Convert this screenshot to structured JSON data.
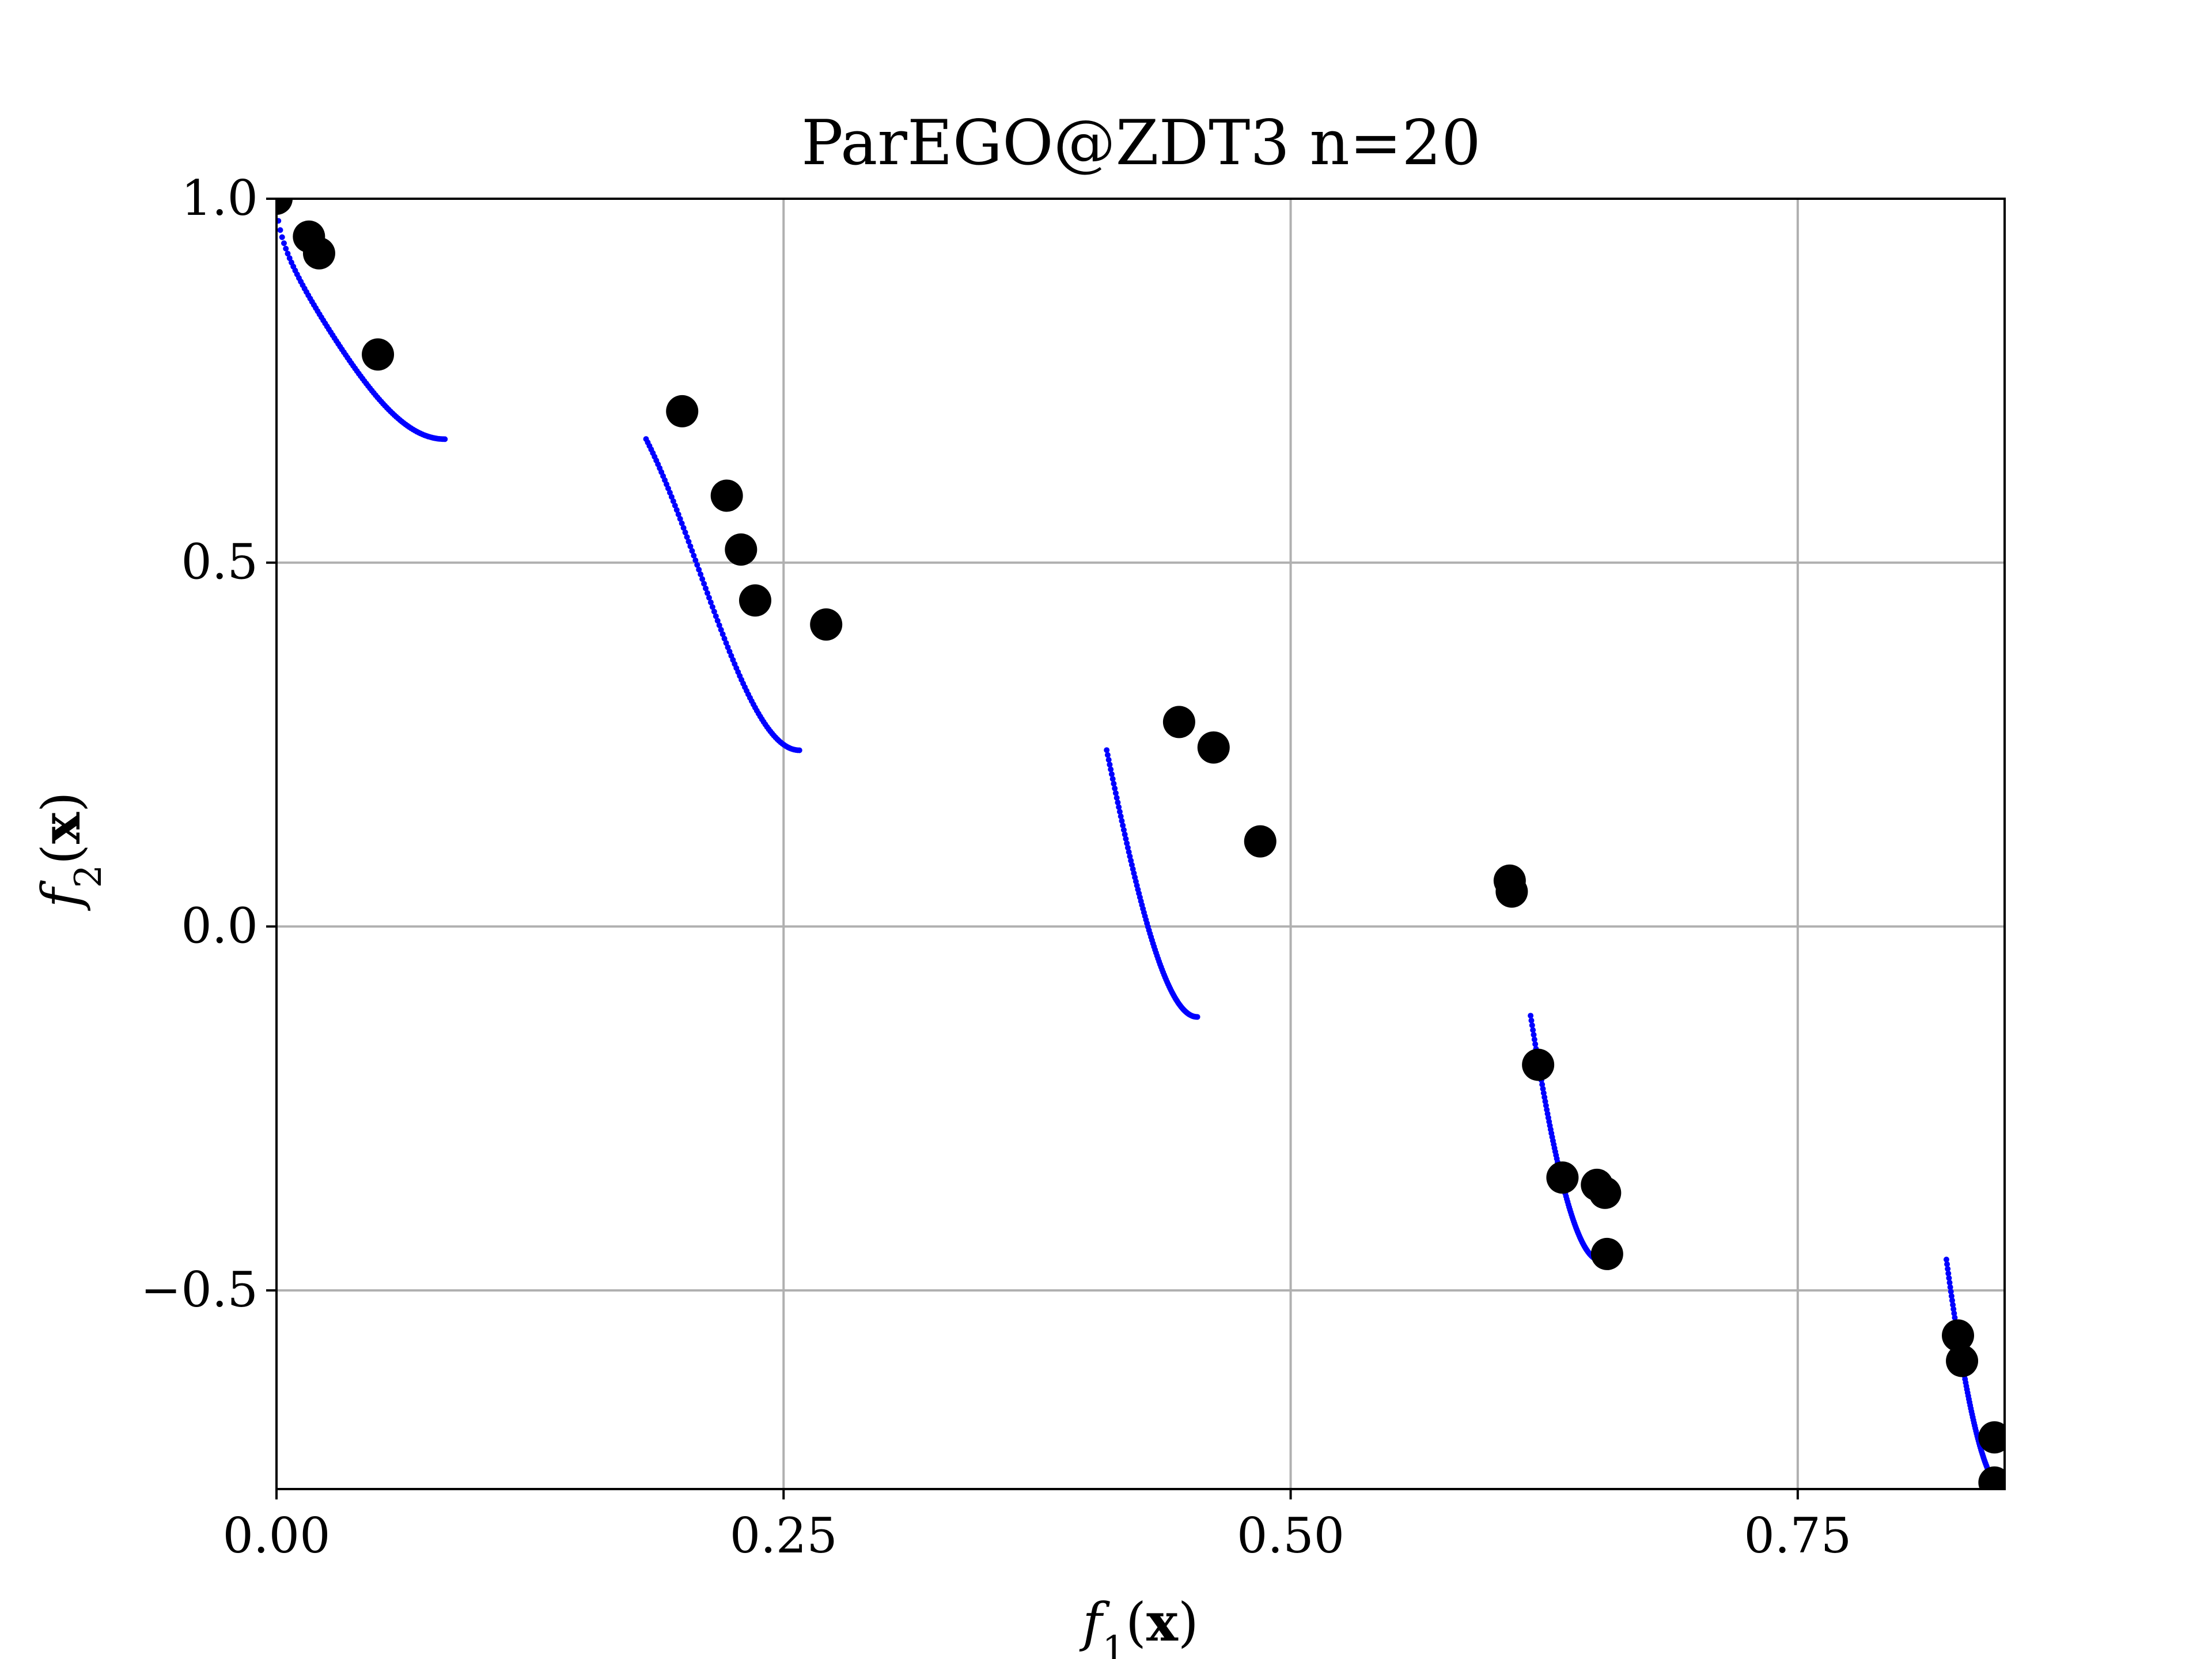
{
  "chart_data": {
    "type": "scatter",
    "title": "ParEGO@ZDT3 n=20",
    "xlabel": "f_1(x)",
    "ylabel": "f_2(x)",
    "xlabel_parts": {
      "fn": "f",
      "sub": "1",
      "open": "(",
      "arg": "x",
      "close": ")"
    },
    "ylabel_parts": {
      "fn": "f",
      "sub": "2",
      "open": "(",
      "arg": "x",
      "close": ")"
    },
    "xlim": [
      0,
      0.852
    ],
    "ylim": [
      -0.773,
      1.0
    ],
    "xticks": [
      0.0,
      0.25,
      0.5,
      0.75
    ],
    "xtick_labels": [
      "0.00",
      "0.25",
      "0.50",
      "0.75"
    ],
    "yticks": [
      -0.5,
      0.0,
      0.5,
      1.0
    ],
    "ytick_labels": [
      "−0.5",
      "0.0",
      "0.5",
      "1.0"
    ],
    "grid": true,
    "series": [
      {
        "kind": "pareto_front",
        "color": "#0000ff",
        "segments": [
          {
            "x_start": 0.0,
            "x_end": 0.083
          },
          {
            "x_start": 0.1822,
            "x_end": 0.2578
          },
          {
            "x_start": 0.4093,
            "x_end": 0.454
          },
          {
            "x_start": 0.6183,
            "x_end": 0.6525
          },
          {
            "x_start": 0.8233,
            "x_end": 0.8518
          }
        ]
      },
      {
        "kind": "samples",
        "color": "#000000",
        "points": [
          [
            0.0,
            1.0
          ],
          [
            0.016,
            0.948
          ],
          [
            0.021,
            0.925
          ],
          [
            0.05,
            0.786
          ],
          [
            0.2,
            0.708
          ],
          [
            0.222,
            0.592
          ],
          [
            0.229,
            0.518
          ],
          [
            0.236,
            0.448
          ],
          [
            0.271,
            0.415
          ],
          [
            0.445,
            0.281
          ],
          [
            0.462,
            0.246
          ],
          [
            0.485,
            0.117
          ],
          [
            0.608,
            0.063
          ],
          [
            0.609,
            0.048
          ],
          [
            0.622,
            -0.19
          ],
          [
            0.634,
            -0.345
          ],
          [
            0.651,
            -0.355
          ],
          [
            0.655,
            -0.366
          ],
          [
            0.656,
            -0.45
          ],
          [
            0.829,
            -0.562
          ],
          [
            0.831,
            -0.597
          ],
          [
            0.847,
            -0.702
          ],
          [
            0.847,
            -0.764
          ]
        ]
      }
    ]
  }
}
